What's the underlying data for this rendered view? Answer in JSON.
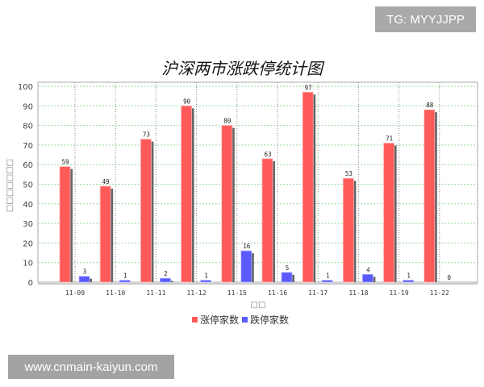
{
  "watermarks": {
    "top": "TG: MYYJJPP",
    "bottom": "www.cnmain-kaiyun.com"
  },
  "chart_data": {
    "type": "bar",
    "title": "沪深两市涨跌停统计图",
    "xlabel": "□□",
    "ylabel": "□□□□□□□",
    "ylim": [
      0,
      100
    ],
    "yticks": [
      0,
      10,
      20,
      30,
      40,
      50,
      60,
      70,
      80,
      90,
      100
    ],
    "grid": true,
    "legend_position": "bottom",
    "categories": [
      "11-09",
      "11-10",
      "11-11",
      "11-12",
      "11-15",
      "11-16",
      "11-17",
      "11-18",
      "11-19",
      "11-22"
    ],
    "series": [
      {
        "name": "涨停家数",
        "color": "#ff5a5a",
        "values": [
          59,
          49,
          73,
          90,
          80,
          63,
          97,
          53,
          71,
          88
        ]
      },
      {
        "name": "跌停家数",
        "color": "#5a5aff",
        "values": [
          3,
          1,
          2,
          1,
          16,
          5,
          1,
          4,
          1,
          0
        ]
      }
    ]
  }
}
